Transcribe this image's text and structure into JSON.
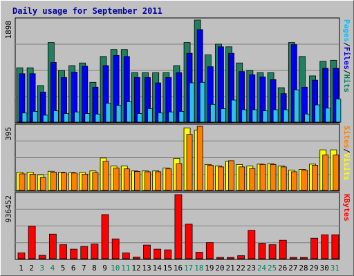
{
  "chart_data": {
    "type": "bar",
    "title": "Daily usage for September 2011",
    "categories": [
      "1",
      "2",
      "3",
      "4",
      "5",
      "6",
      "7",
      "8",
      "9",
      "10",
      "11",
      "12",
      "13",
      "14",
      "15",
      "16",
      "17",
      "18",
      "19",
      "20",
      "21",
      "22",
      "23",
      "24",
      "25",
      "26",
      "27",
      "28",
      "29",
      "30",
      "31"
    ],
    "weekend_days": [
      "3",
      "4",
      "10",
      "11",
      "17",
      "18",
      "24",
      "25",
      "31"
    ],
    "panels": [
      {
        "id": "hits",
        "max_label": "1898",
        "ymax": 1898,
        "legend": [
          {
            "text": "Pages",
            "color": "#00c0ff"
          },
          {
            "text": "/",
            "color": "#000000"
          },
          {
            "text": "Files",
            "color": "#0000ff"
          },
          {
            "text": "/",
            "color": "#000000"
          },
          {
            "text": "Hits",
            "color": "#008060"
          }
        ],
        "series": [
          {
            "name": "Hits",
            "color": "#208060",
            "values": [
              1010,
              1010,
              680,
              1480,
              960,
              1050,
              1100,
              740,
              1220,
              1350,
              1350,
              920,
              920,
              920,
              920,
              1050,
              1480,
              1898,
              1250,
              1450,
              1400,
              1100,
              960,
              920,
              920,
              640,
              1480,
              1220,
              860,
              1130,
              1150
            ]
          },
          {
            "name": "Files",
            "color": "#0000f0",
            "values": [
              900,
              900,
              560,
              1110,
              830,
              930,
              1040,
              650,
              1050,
              1240,
              1220,
              830,
              830,
              730,
              830,
              920,
              1280,
              1720,
              1030,
              1400,
              1280,
              940,
              880,
              840,
              790,
              530,
              1440,
              650,
              780,
              1000,
              1000
            ]
          },
          {
            "name": "Pages",
            "color": "#30c0f0",
            "values": [
              170,
              200,
              130,
              210,
              160,
              190,
              160,
              150,
              350,
              310,
              380,
              160,
              250,
              170,
              190,
              200,
              730,
              740,
              330,
              250,
              410,
              230,
              230,
              210,
              230,
              230,
              600,
              150,
              320,
              260,
              430
            ]
          }
        ]
      },
      {
        "id": "visits",
        "max_label": "395",
        "ymax": 395,
        "legend": [
          {
            "text": "Sites",
            "color": "#ff8000"
          },
          {
            "text": "/",
            "color": "#000000"
          },
          {
            "text": "Visits",
            "color": "#ffff00"
          }
        ],
        "series": [
          {
            "name": "Visits",
            "color": "#ffff00",
            "values": [
              112,
              112,
              95,
              118,
              112,
              110,
              110,
              120,
              200,
              150,
              150,
              120,
              120,
              120,
              138,
              197,
              385,
              372,
              160,
              150,
              180,
              160,
              150,
              162,
              165,
              150,
              125,
              130,
              162,
              250,
              250
            ]
          },
          {
            "name": "Sites",
            "color": "#ff8000",
            "values": [
              102,
              100,
              80,
              113,
              108,
              107,
              100,
              110,
              180,
              138,
              133,
              117,
              115,
              115,
              133,
              165,
              345,
              395,
              155,
              145,
              183,
              145,
              135,
              160,
              160,
              145,
              115,
              125,
              155,
              218,
              218
            ]
          }
        ]
      },
      {
        "id": "kbytes",
        "max_label": "936452",
        "ymax": 936452,
        "legend": [
          {
            "text": "KBytes",
            "color": "#ff0000"
          }
        ],
        "series": [
          {
            "name": "KBytes",
            "color": "#ff0000",
            "values": [
              85000,
              475000,
              50000,
              360000,
              205000,
              140000,
              180000,
              215000,
              645000,
              290000,
              85000,
              25000,
              200000,
              140000,
              130000,
              936452,
              505000,
              95000,
              235000,
              20000,
              20000,
              45000,
              415000,
              225000,
              205000,
              270000,
              20000,
              20000,
              300000,
              350000,
              350000
            ]
          }
        ]
      }
    ]
  }
}
